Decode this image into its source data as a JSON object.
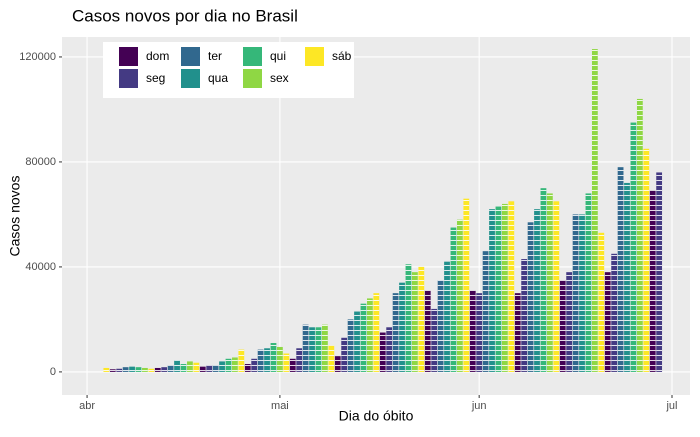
{
  "chart_data": {
    "type": "bar",
    "title": "Casos novos por dia no Brasil",
    "x_label": "Dia do óbito",
    "y_label": "Casos novos",
    "xlim": [
      -3.9,
      93.8
    ],
    "xticks": [
      {
        "value": 0,
        "label": "abr"
      },
      {
        "value": 30,
        "label": "mai"
      },
      {
        "value": 61,
        "label": "jun"
      },
      {
        "value": 91,
        "label": "jul"
      }
    ],
    "ylim": [
      -8800,
      127600
    ],
    "yticks": [
      0,
      40000,
      80000,
      120000
    ],
    "grid": true,
    "legend": "top-left",
    "series": [
      {
        "name": "dom",
        "color": "#440154",
        "x": [
          4,
          11,
          18,
          25,
          32,
          39,
          46,
          53,
          60,
          67,
          74,
          81,
          88
        ],
        "values": [
          1000,
          1500,
          2000,
          3000,
          5000,
          6000,
          15000,
          31000,
          31000,
          30000,
          35000,
          38000,
          69000
        ]
      },
      {
        "name": "seg",
        "color": "#443A83",
        "x": [
          5,
          12,
          19,
          26,
          33,
          40,
          47,
          54,
          61,
          68,
          75,
          82,
          89
        ],
        "values": [
          1200,
          1800,
          2500,
          5000,
          9000,
          13000,
          17000,
          24000,
          30000,
          43000,
          38000,
          45000,
          76000
        ]
      },
      {
        "name": "ter",
        "color": "#31688E",
        "x": [
          6,
          13,
          20,
          27,
          34,
          41,
          48,
          55,
          62,
          69,
          76,
          83
        ],
        "values": [
          1800,
          2500,
          2500,
          8500,
          18000,
          20000,
          30000,
          35000,
          46000,
          57000,
          60000,
          78000
        ]
      },
      {
        "name": "qua",
        "color": "#21908C",
        "x": [
          7,
          14,
          21,
          28,
          35,
          42,
          49,
          56,
          63,
          70,
          77,
          84
        ],
        "values": [
          2000,
          4500,
          4000,
          9000,
          17000,
          23000,
          34000,
          42000,
          62000,
          62000,
          60000,
          72000
        ]
      },
      {
        "name": "qui",
        "color": "#35B779",
        "x": [
          8,
          15,
          22,
          29,
          36,
          43,
          50,
          57,
          64,
          71,
          78,
          85
        ],
        "values": [
          1800,
          3000,
          5000,
          11000,
          17000,
          26000,
          41000,
          55000,
          63000,
          70000,
          68000,
          95000
        ]
      },
      {
        "name": "sex",
        "color": "#8FD744",
        "x": [
          9,
          16,
          23,
          30,
          37,
          44,
          51,
          58,
          65,
          72,
          79,
          86
        ],
        "values": [
          1500,
          4000,
          5500,
          9500,
          18000,
          28000,
          38000,
          58000,
          64000,
          68000,
          123000,
          104000
        ]
      },
      {
        "name": "sáb",
        "color": "#FDE725",
        "x": [
          3,
          10,
          17,
          24,
          31,
          38,
          45,
          52,
          59,
          66,
          73,
          80,
          87
        ],
        "values": [
          1500,
          1200,
          3500,
          8500,
          7000,
          10000,
          30000,
          40000,
          66000,
          65000,
          65000,
          53000,
          85000
        ]
      }
    ]
  }
}
